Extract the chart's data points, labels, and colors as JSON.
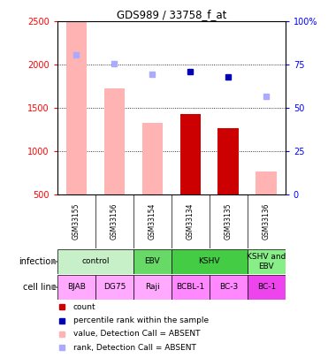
{
  "title": "GDS989 / 33758_f_at",
  "samples": [
    "GSM33155",
    "GSM33156",
    "GSM33154",
    "GSM33134",
    "GSM33135",
    "GSM33136"
  ],
  "bar_values_absent": [
    2500,
    1730,
    1330,
    0,
    0,
    760
  ],
  "bar_values_present": [
    0,
    0,
    0,
    1430,
    1270,
    0
  ],
  "rank_absent_y": [
    2110,
    2010,
    1890,
    0,
    0,
    1630
  ],
  "rank_present_y": [
    0,
    0,
    0,
    1920,
    1860,
    0
  ],
  "ylim": [
    500,
    2500
  ],
  "yticks": [
    500,
    1000,
    1500,
    2000,
    2500
  ],
  "yticks_right": [
    0,
    25,
    50,
    75,
    100
  ],
  "infection_groups": [
    {
      "label": "control",
      "cols": [
        0,
        1
      ],
      "color": "#c8f0c8"
    },
    {
      "label": "EBV",
      "cols": [
        2
      ],
      "color": "#66d966"
    },
    {
      "label": "KSHV",
      "cols": [
        3,
        4
      ],
      "color": "#44cc44"
    },
    {
      "label": "KSHV and\nEBV",
      "cols": [
        5
      ],
      "color": "#88ee88"
    }
  ],
  "cell_lines": [
    "BJAB",
    "DG75",
    "Raji",
    "BCBL-1",
    "BC-3",
    "BC-1"
  ],
  "cell_line_colors": [
    "#ffaaff",
    "#ffaaff",
    "#ffaaff",
    "#ff88ff",
    "#ff88ff",
    "#ee44ee"
  ],
  "bar_width": 0.55,
  "color_absent_bar": "#ffb3b3",
  "color_present_bar": "#cc0000",
  "color_absent_rank": "#aaaaff",
  "color_present_rank": "#0000bb",
  "bg_gsm": "#c0c0c0",
  "legend_items": [
    {
      "color": "#cc0000",
      "label": "count"
    },
    {
      "color": "#0000bb",
      "label": "percentile rank within the sample"
    },
    {
      "color": "#ffb3b3",
      "label": "value, Detection Call = ABSENT"
    },
    {
      "color": "#aaaaff",
      "label": "rank, Detection Call = ABSENT"
    }
  ]
}
